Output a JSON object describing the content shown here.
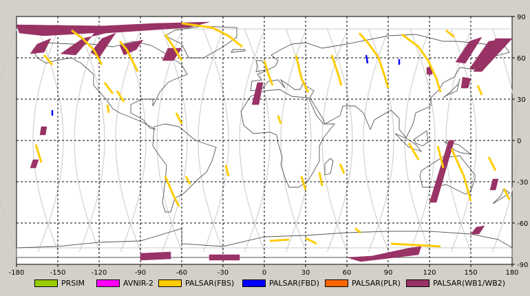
{
  "map": {
    "lon_range": [
      -180,
      180
    ],
    "lat_range": [
      -90,
      90
    ],
    "x_ticks": [
      -180,
      -150,
      -120,
      -90,
      -60,
      -30,
      0,
      30,
      60,
      90,
      120,
      150,
      180
    ],
    "y_ticks": [
      90,
      60,
      30,
      0,
      -30,
      -60,
      -90
    ],
    "x_tick_labels": [
      "-180",
      "-150",
      "-120",
      "-90",
      "-60",
      "-30",
      "0",
      "30",
      "60",
      "90",
      "120",
      "150",
      "180"
    ],
    "y_tick_labels": [
      "90",
      "60",
      "30",
      "0",
      "-30",
      "-60",
      "-90"
    ],
    "grid": "dashed",
    "background": "#ffffff"
  },
  "legend": [
    {
      "label": "PRSIM",
      "color": "#99cc00"
    },
    {
      "label": "AVNIR-2",
      "color": "#ff00ff"
    },
    {
      "label": "PALSAR(FBS)",
      "color": "#ffcc00"
    },
    {
      "label": "PALSAR(FBD)",
      "color": "#0000ff"
    },
    {
      "label": "PALSAR(PLR)",
      "color": "#ff6600"
    },
    {
      "label": "PALSAR(WB1/WB2)",
      "color": "#993366"
    }
  ],
  "chart_data": {
    "type": "map",
    "series": [
      {
        "name": "PALSAR(WB1/WB2)",
        "color": "#993366",
        "swaths": [
          {
            "pts": [
              [
                -180,
                84
              ],
              [
                -108,
                83
              ],
              [
                -108,
                79
              ],
              [
                -160,
                76
              ],
              [
                -178,
                78
              ]
            ]
          },
          {
            "pts": [
              [
                -120,
                83
              ],
              [
                -80,
                85
              ],
              [
                -40,
                86
              ],
              [
                -55,
                82
              ],
              [
                -85,
                80
              ],
              [
                -115,
                78
              ],
              [
                -132,
                74
              ],
              [
                -148,
                63
              ],
              [
                -137,
                62
              ],
              [
                -125,
                76
              ]
            ]
          },
          {
            "pts": [
              [
                -118,
                74
              ],
              [
                -108,
                78
              ],
              [
                -120,
                60
              ],
              [
                -126,
                64
              ]
            ]
          },
          {
            "pts": [
              [
                -105,
                69
              ],
              [
                -88,
                73
              ],
              [
                -93,
                66
              ],
              [
                -102,
                62
              ]
            ]
          },
          {
            "pts": [
              [
                -70,
                67
              ],
              [
                -60,
                67
              ],
              [
                -66,
                58
              ],
              [
                -74,
                58
              ]
            ]
          },
          {
            "pts": [
              [
                -165,
                70
              ],
              [
                -155,
                74
              ],
              [
                -160,
                64
              ],
              [
                -170,
                63
              ]
            ]
          },
          {
            "pts": [
              [
                -5,
                42
              ],
              [
                -1,
                42
              ],
              [
                -4,
                26
              ],
              [
                -9,
                26
              ]
            ]
          },
          {
            "pts": [
              [
                -162,
                10
              ],
              [
                -158,
                10
              ],
              [
                -159,
                4
              ],
              [
                -163,
                4
              ]
            ]
          },
          {
            "pts": [
              [
                -168,
                -14
              ],
              [
                -164,
                -14
              ],
              [
                -166,
                -20
              ],
              [
                -170,
                -20
              ]
            ]
          },
          {
            "pts": [
              [
                -90,
                -82
              ],
              [
                -68,
                -81
              ],
              [
                -68,
                -86
              ],
              [
                -90,
                -87
              ]
            ]
          },
          {
            "pts": [
              [
                -40,
                -83
              ],
              [
                -18,
                -83
              ],
              [
                -18,
                -87
              ],
              [
                -40,
                -87
              ]
            ]
          },
          {
            "pts": [
              [
                106,
                -78
              ],
              [
                114,
                -77
              ],
              [
                112,
                -83
              ],
              [
                70,
                -88
              ],
              [
                60,
                -85
              ],
              [
                78,
                -84
              ]
            ]
          },
          {
            "pts": [
              [
                134,
                0
              ],
              [
                138,
                0
              ],
              [
                125,
                -45
              ],
              [
                120,
                -45
              ]
            ]
          },
          {
            "pts": [
              [
                149,
                72
              ],
              [
                158,
                75
              ],
              [
                146,
                56
              ],
              [
                139,
                57
              ]
            ]
          },
          {
            "pts": [
              [
                163,
                72
              ],
              [
                171,
                73
              ],
              [
                156,
                52
              ],
              [
                149,
                52
              ]
            ]
          },
          {
            "pts": [
              [
                168,
                74
              ],
              [
                180,
                74
              ],
              [
                158,
                50
              ],
              [
                152,
                50
              ]
            ]
          },
          {
            "pts": [
              [
                150,
                45
              ],
              [
                144,
                46
              ],
              [
                143,
                38
              ],
              [
                148,
                38
              ]
            ]
          },
          {
            "pts": [
              [
                170,
                -28
              ],
              [
                166,
                -28
              ],
              [
                164,
                -36
              ],
              [
                168,
                -36
              ]
            ]
          },
          {
            "pts": [
              [
                154,
                -63
              ],
              [
                160,
                -62
              ],
              [
                156,
                -68
              ],
              [
                150,
                -68
              ]
            ]
          },
          {
            "pts": [
              [
                122,
                53
              ],
              [
                118,
                53
              ],
              [
                118,
                48
              ],
              [
                122,
                48
              ]
            ]
          }
        ]
      },
      {
        "name": "PALSAR(FBS)",
        "color": "#ffcc00",
        "lines": [
          {
            "pts": [
              [
                -140,
                80
              ],
              [
                -132,
                74
              ],
              [
                -124,
                66
              ],
              [
                -118,
                55
              ]
            ]
          },
          {
            "pts": [
              [
                -105,
                72
              ],
              [
                -100,
                66
              ],
              [
                -96,
                58
              ],
              [
                -92,
                50
              ]
            ]
          },
          {
            "pts": [
              [
                -72,
                77
              ],
              [
                -66,
                68
              ],
              [
                -60,
                58
              ]
            ]
          },
          {
            "pts": [
              [
                -60,
                85
              ],
              [
                -38,
                82
              ],
              [
                -26,
                76
              ],
              [
                -16,
                68
              ]
            ]
          },
          {
            "pts": [
              [
                -116,
                42
              ],
              [
                -110,
                34
              ]
            ]
          },
          {
            "pts": [
              [
                -107,
                36
              ],
              [
                -102,
                28
              ]
            ]
          },
          {
            "pts": [
              [
                -114,
                26
              ],
              [
                -113,
                20
              ]
            ]
          },
          {
            "pts": [
              [
                -64,
                20
              ],
              [
                -60,
                12
              ]
            ]
          },
          {
            "pts": [
              [
                -72,
                -26
              ],
              [
                -66,
                -40
              ],
              [
                -62,
                -48
              ]
            ]
          },
          {
            "pts": [
              [
                -57,
                -26
              ],
              [
                -54,
                -32
              ]
            ]
          },
          {
            "pts": [
              [
                -28,
                -18
              ],
              [
                -26,
                -26
              ]
            ]
          },
          {
            "pts": [
              [
                -166,
                -3
              ],
              [
                -162,
                -16
              ]
            ]
          },
          {
            "pts": [
              [
                -160,
                62
              ],
              [
                -154,
                55
              ]
            ]
          },
          {
            "pts": [
              [
                0,
                58
              ],
              [
                3,
                48
              ],
              [
                6,
                40
              ]
            ]
          },
          {
            "pts": [
              [
                23,
                62
              ],
              [
                27,
                45
              ],
              [
                32,
                35
              ]
            ]
          },
          {
            "pts": [
              [
                49,
                62
              ],
              [
                53,
                50
              ],
              [
                56,
                40
              ]
            ]
          },
          {
            "pts": [
              [
                10,
                18
              ],
              [
                12,
                12
              ]
            ]
          },
          {
            "pts": [
              [
                27,
                -26
              ],
              [
                30,
                -36
              ]
            ]
          },
          {
            "pts": [
              [
                40,
                -23
              ],
              [
                42,
                -33
              ]
            ]
          },
          {
            "pts": [
              [
                55,
                -17
              ],
              [
                58,
                -24
              ]
            ]
          },
          {
            "pts": [
              [
                69,
                78
              ],
              [
                76,
                70
              ],
              [
                83,
                60
              ],
              [
                87,
                48
              ],
              [
                90,
                38
              ]
            ]
          },
          {
            "pts": [
              [
                100,
                77
              ],
              [
                112,
                68
              ],
              [
                119,
                58
              ],
              [
                125,
                45
              ],
              [
                128,
                35
              ]
            ]
          },
          {
            "pts": [
              [
                132,
                80
              ],
              [
                138,
                75
              ]
            ]
          },
          {
            "pts": [
              [
                126,
                -4
              ],
              [
                130,
                -20
              ]
            ]
          },
          {
            "pts": [
              [
                136,
                -6
              ],
              [
                145,
                -26
              ],
              [
                150,
                -44
              ]
            ]
          },
          {
            "pts": [
              [
                105,
                -2
              ],
              [
                112,
                -14
              ]
            ]
          },
          {
            "pts": [
              [
                163,
                -12
              ],
              [
                168,
                -22
              ]
            ]
          },
          {
            "pts": [
              [
                174,
                -35
              ],
              [
                178,
                -43
              ]
            ]
          },
          {
            "pts": [
              [
                155,
                40
              ],
              [
                158,
                33
              ]
            ]
          },
          {
            "pts": [
              [
                4,
                -73
              ],
              [
                18,
                -72
              ]
            ]
          },
          {
            "pts": [
              [
                30,
                -71
              ],
              [
                38,
                -75
              ]
            ]
          },
          {
            "pts": [
              [
                66,
                -64
              ],
              [
                70,
                -67
              ]
            ]
          },
          {
            "pts": [
              [
                92,
                -75
              ],
              [
                128,
                -77
              ]
            ]
          }
        ]
      },
      {
        "name": "PALSAR(FBD)",
        "color": "#0000ff",
        "lines": [
          {
            "pts": [
              [
                -154,
                22
              ],
              [
                -154,
                18
              ]
            ]
          },
          {
            "pts": [
              [
                74,
                62
              ],
              [
                75,
                56
              ]
            ]
          },
          {
            "pts": [
              [
                98,
                59
              ],
              [
                98,
                55
              ]
            ]
          }
        ]
      }
    ]
  }
}
